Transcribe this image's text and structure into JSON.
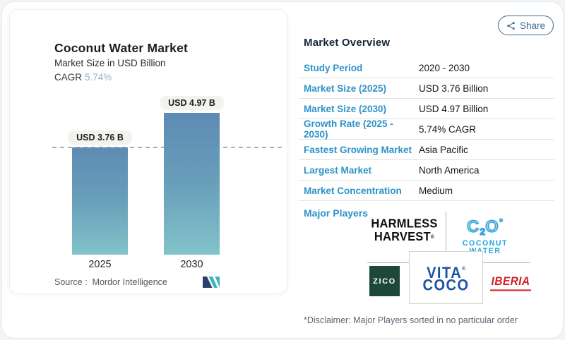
{
  "share_button": {
    "label": "Share"
  },
  "chart_card": {
    "title": "Coconut Water Market",
    "subtitle": "Market Size in USD Billion",
    "cagr_label": "CAGR",
    "cagr_value": "5.74%",
    "source_label": "Source :",
    "source_value": "Mordor Intelligence"
  },
  "chart_data": {
    "type": "bar",
    "title": "Coconut Water Market",
    "ylabel": "Market Size in USD Billion",
    "categories": [
      "2025",
      "2030"
    ],
    "values": [
      3.76,
      4.97
    ],
    "bar_labels": [
      "USD 3.76 B",
      "USD 4.97 B"
    ],
    "cagr_percent": 5.74,
    "reference_line": 3.76,
    "ylim": [
      0,
      5.5
    ],
    "grid": false,
    "bar_color_top": "#5d8bb4",
    "bar_color_bottom": "#82c3c9",
    "reference_line_color": "#9db4c4"
  },
  "overview": {
    "heading": "Market Overview",
    "rows": [
      {
        "label": "Study Period",
        "value": "2020 - 2030"
      },
      {
        "label": "Market Size (2025)",
        "value": "USD 3.76 Billion"
      },
      {
        "label": "Market Size (2030)",
        "value": "USD 4.97 Billion"
      },
      {
        "label": "Growth Rate (2025 - 2030)",
        "value": "5.74% CAGR"
      },
      {
        "label": "Fastest Growing Market",
        "value": "Asia Pacific"
      },
      {
        "label": "Largest Market",
        "value": "North America"
      },
      {
        "label": "Market Concentration",
        "value": "Medium"
      }
    ],
    "major_players_label": "Major Players",
    "players": {
      "harmless_harvest": {
        "line1": "HARMLESS",
        "line2": "HARVEST",
        "reg": "®"
      },
      "c2o": {
        "mark_c": "C",
        "mark_sub": "2",
        "mark_o": "O",
        "reg": "®",
        "line1": "COCONUT",
        "line2": "WATER"
      },
      "zico": {
        "text": "ZICO"
      },
      "vita_coco": {
        "line1": "VITA",
        "line2": "COCO",
        "reg": "®"
      },
      "iberia": {
        "text": "IBERIA"
      }
    },
    "disclaimer": "*Disclaimer: Major Players sorted in no particular order"
  }
}
